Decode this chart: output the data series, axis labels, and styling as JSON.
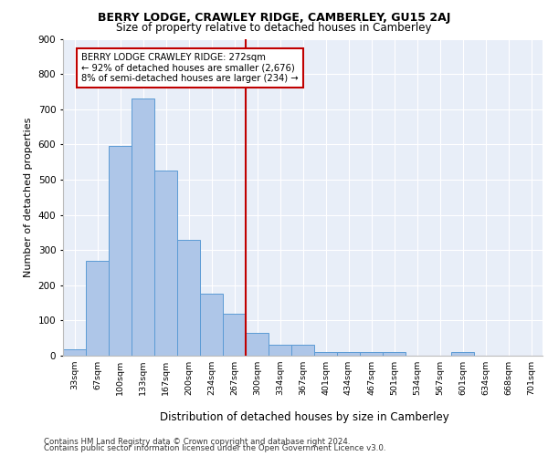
{
  "title1": "BERRY LODGE, CRAWLEY RIDGE, CAMBERLEY, GU15 2AJ",
  "title2": "Size of property relative to detached houses in Camberley",
  "xlabel": "Distribution of detached houses by size in Camberley",
  "ylabel": "Number of detached properties",
  "categories": [
    "33sqm",
    "67sqm",
    "100sqm",
    "133sqm",
    "167sqm",
    "200sqm",
    "234sqm",
    "267sqm",
    "300sqm",
    "334sqm",
    "367sqm",
    "401sqm",
    "434sqm",
    "467sqm",
    "501sqm",
    "534sqm",
    "567sqm",
    "601sqm",
    "634sqm",
    "668sqm",
    "701sqm"
  ],
  "values": [
    18,
    270,
    595,
    730,
    525,
    330,
    175,
    120,
    65,
    30,
    30,
    10,
    10,
    10,
    10,
    0,
    0,
    10,
    0,
    0,
    0
  ],
  "bar_color": "#aec6e8",
  "bar_edge_color": "#5b9bd5",
  "vline_x_index": 7.5,
  "vline_color": "#c00000",
  "annotation_text": "BERRY LODGE CRAWLEY RIDGE: 272sqm\n← 92% of detached houses are smaller (2,676)\n8% of semi-detached houses are larger (234) →",
  "annotation_box_color": "#c00000",
  "ylim": [
    0,
    900
  ],
  "yticks": [
    0,
    100,
    200,
    300,
    400,
    500,
    600,
    700,
    800,
    900
  ],
  "bg_color": "#e8eef8",
  "footer1": "Contains HM Land Registry data © Crown copyright and database right 2024.",
  "footer2": "Contains public sector information licensed under the Open Government Licence v3.0."
}
